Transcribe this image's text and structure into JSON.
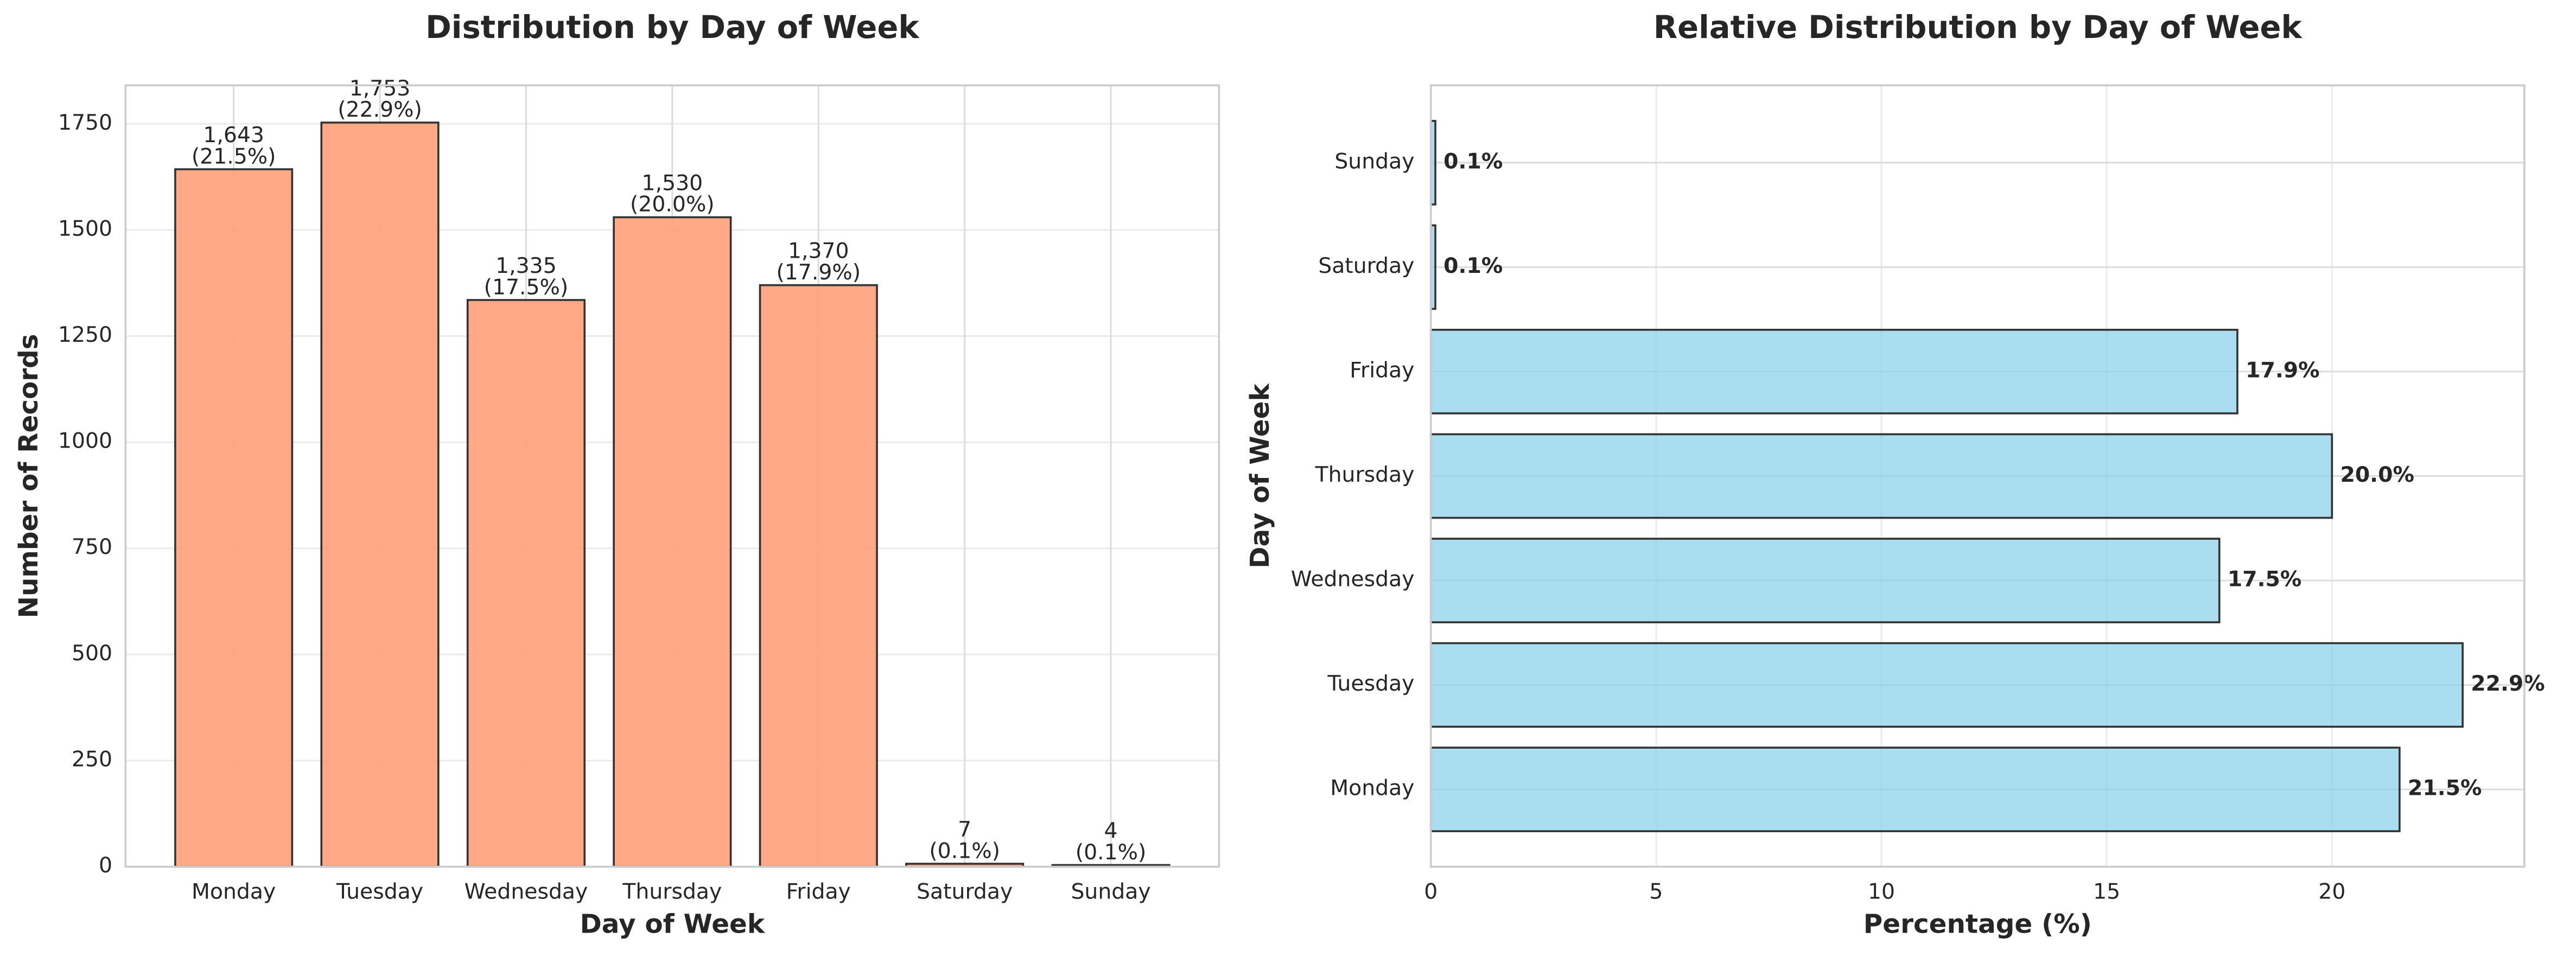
{
  "chart_data": [
    {
      "type": "bar",
      "title": "Distribution by Day of Week",
      "x_label": "Day of Week",
      "y_label": "Number of Records",
      "categories": [
        "Monday",
        "Tuesday",
        "Wednesday",
        "Thursday",
        "Friday",
        "Saturday",
        "Sunday"
      ],
      "values": [
        1643,
        1753,
        1335,
        1530,
        1370,
        7,
        4
      ],
      "value_labels": [
        "1,643",
        "1,753",
        "1,335",
        "1,530",
        "1,370",
        "7",
        "4"
      ],
      "percent_labels": [
        "(21.5%)",
        "(22.9%)",
        "(17.5%)",
        "(20.0%)",
        "(17.9%)",
        "(0.1%)",
        "(0.1%)"
      ],
      "color": "#ffa07a",
      "ylim": [
        0,
        1840.65
      ],
      "yticks": [
        0,
        250,
        500,
        750,
        1000,
        1250,
        1500,
        1750
      ],
      "grid": true
    },
    {
      "type": "barh",
      "title": "Relative Distribution by Day of Week",
      "x_label": "Percentage (%)",
      "y_label": "Day of Week",
      "categories": [
        "Monday",
        "Tuesday",
        "Wednesday",
        "Thursday",
        "Friday",
        "Saturday",
        "Sunday"
      ],
      "values": [
        21.5,
        22.9,
        17.5,
        20.0,
        17.9,
        0.1,
        0.1
      ],
      "value_labels": [
        "21.5%",
        "22.9%",
        "17.5%",
        "20.0%",
        "17.9%",
        "0.1%",
        "0.1%"
      ],
      "color": "#87ceeb",
      "xlim": [
        0,
        24.27
      ],
      "xticks": [
        0,
        5,
        10,
        15,
        20
      ],
      "grid": true
    }
  ]
}
